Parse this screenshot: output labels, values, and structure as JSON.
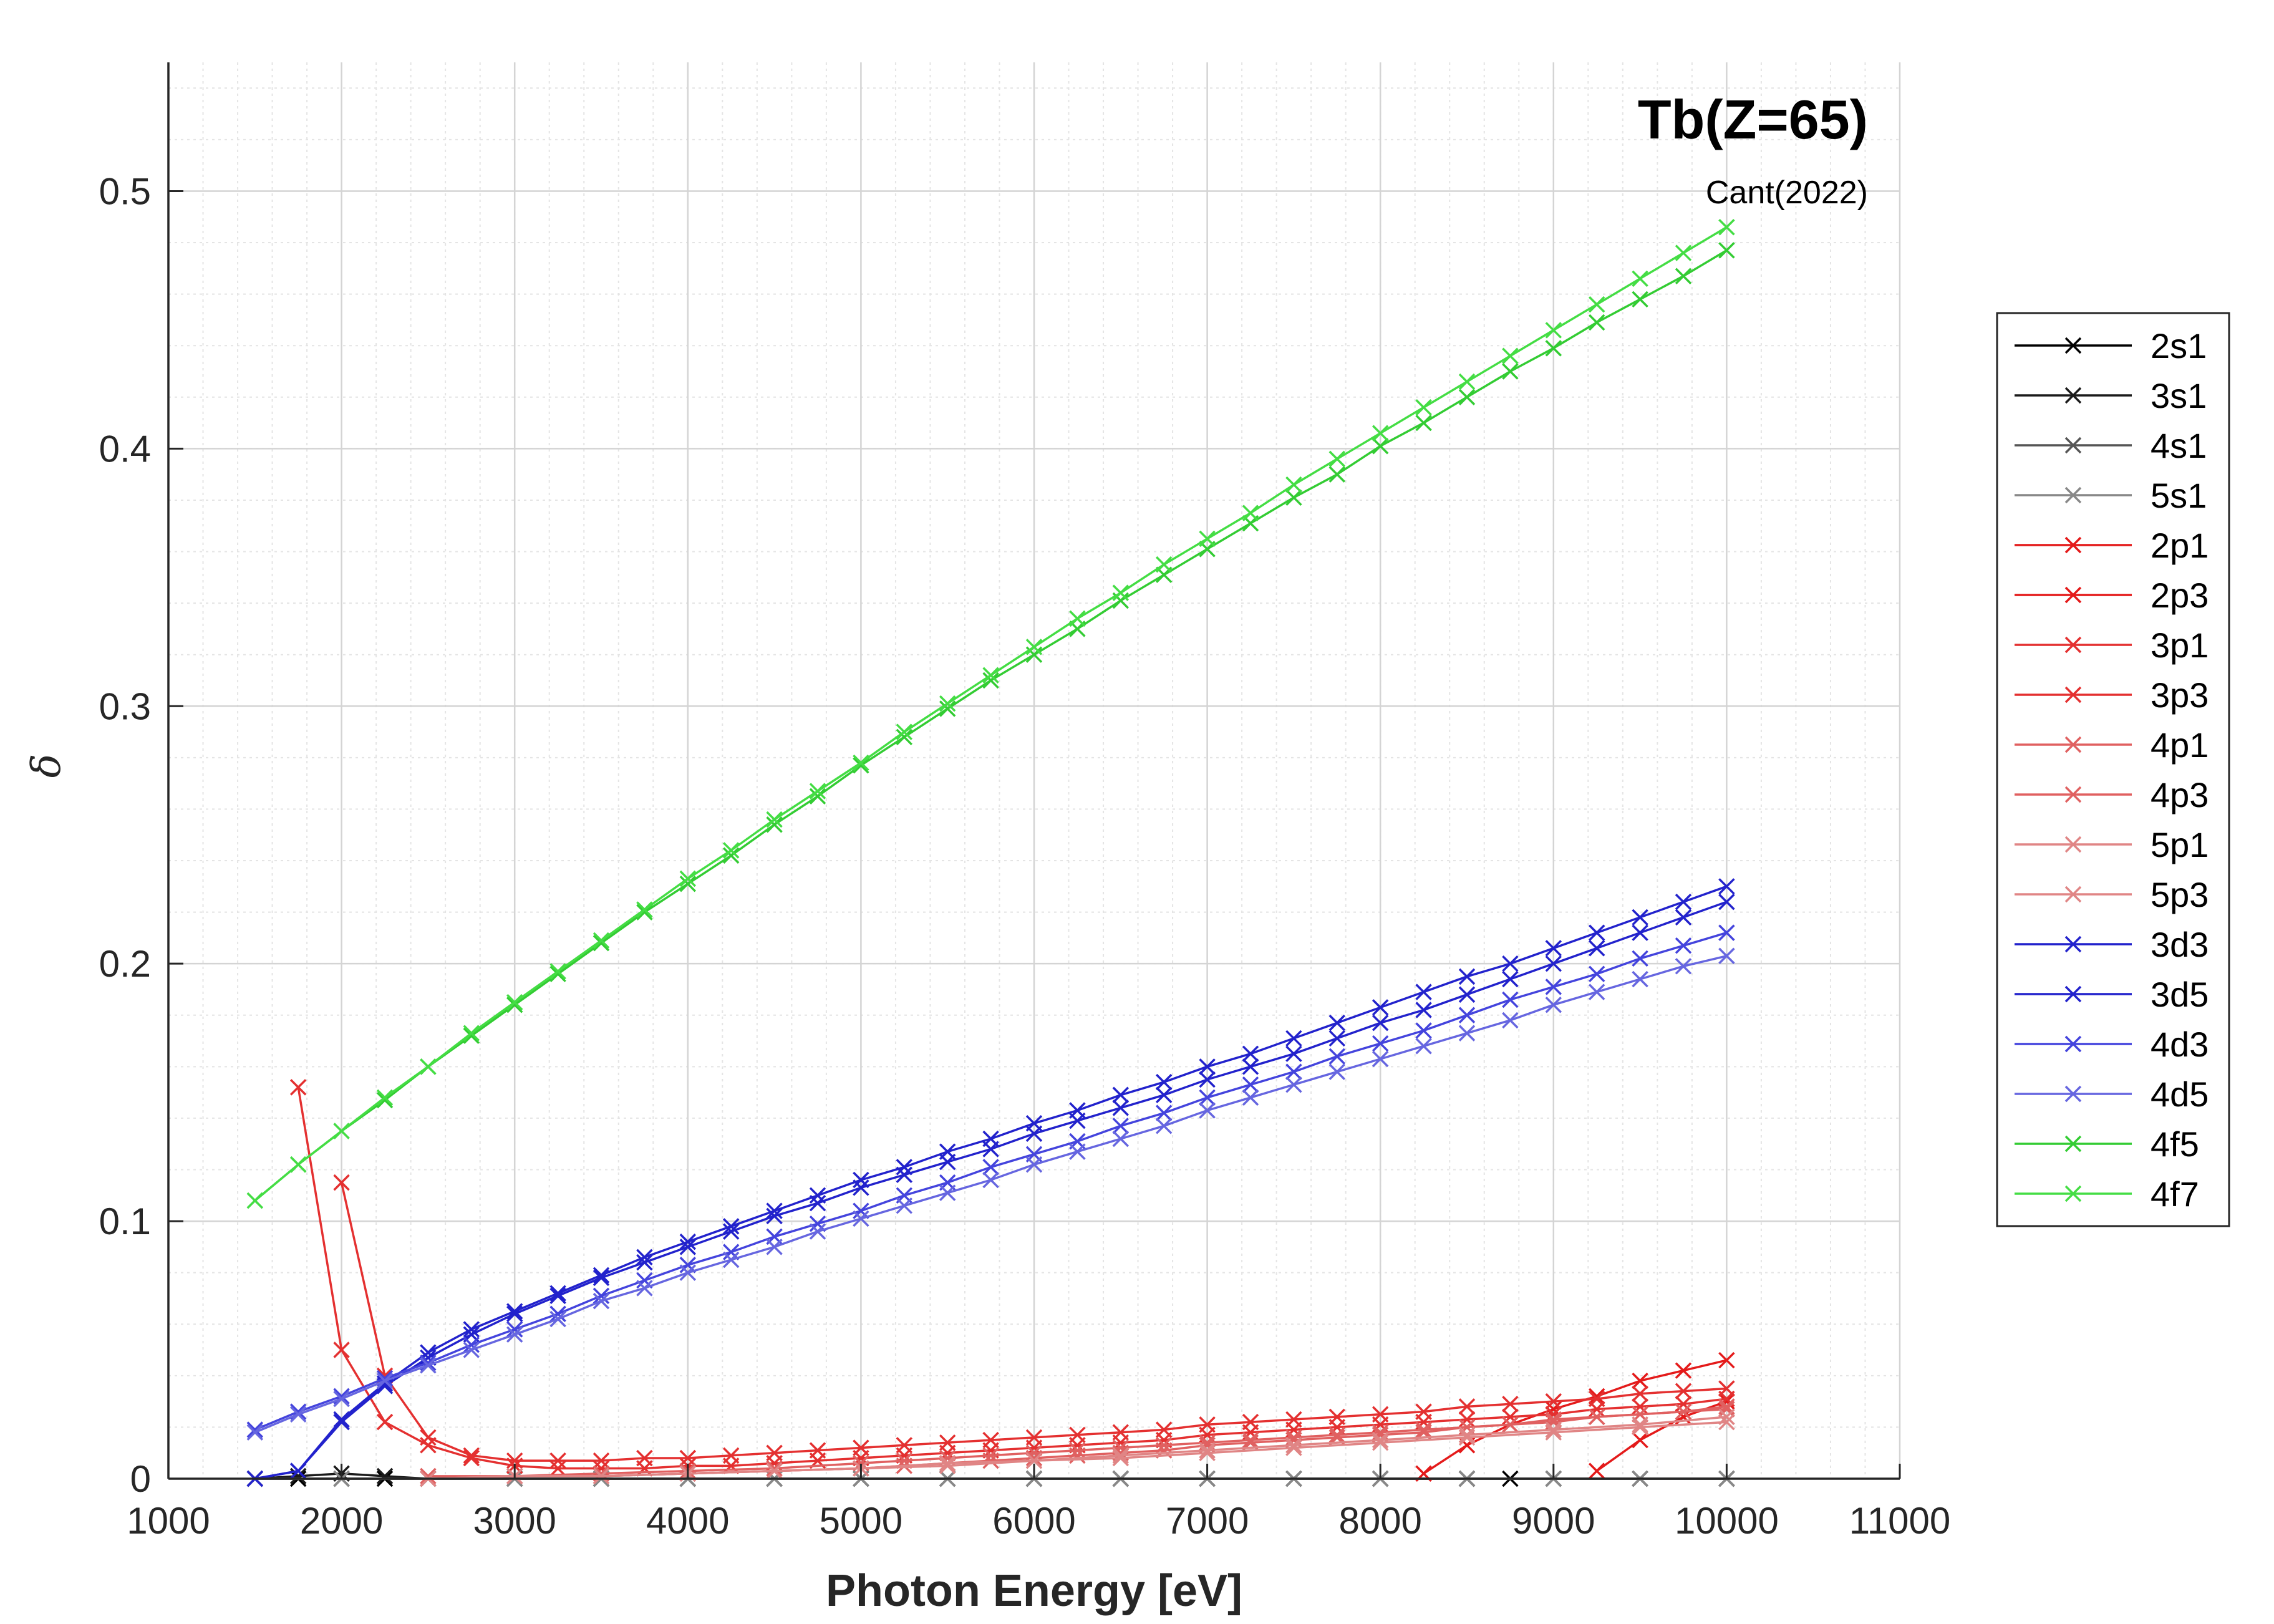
{
  "chart_data": {
    "type": "line",
    "title": "Tb(Z=65)",
    "subtitle": "Cant(2022)",
    "xlabel": "Photon Energy [eV]",
    "ylabel": "δ",
    "xlim": [
      1000,
      11000
    ],
    "ylim": [
      0,
      0.55
    ],
    "xticks": [
      1000,
      2000,
      3000,
      4000,
      5000,
      6000,
      7000,
      8000,
      9000,
      10000,
      11000
    ],
    "xtick_labels": [
      "1000",
      "2000",
      "3000",
      "4000",
      "5000",
      "6000",
      "7000",
      "8000",
      "9000",
      "10000",
      "11000"
    ],
    "yticks": [
      0,
      0.1,
      0.2,
      0.3,
      0.4,
      0.5
    ],
    "ytick_labels": [
      "0",
      "0.1",
      "0.2",
      "0.3",
      "0.4",
      "0.5"
    ],
    "grid": true,
    "minor_grid": true,
    "legend_position": "outside-right",
    "marker": "x",
    "series": [
      {
        "name": "2s1",
        "color": "#000000",
        "x": [
          1500,
          1750,
          2000,
          2250,
          2500,
          3000,
          3500,
          4000,
          4500,
          5000,
          5500,
          6000,
          6500,
          7000,
          7500,
          8000,
          8500,
          8750,
          9000,
          9500,
          10000
        ],
        "y": [
          0,
          0,
          0,
          0,
          0,
          0,
          0,
          0,
          0,
          0,
          0,
          0,
          0,
          0,
          0,
          0,
          0,
          0,
          0,
          0,
          0
        ]
      },
      {
        "name": "3s1",
        "color": "#1a1a1a",
        "x": [
          1500,
          1750,
          2000,
          2250,
          2500,
          3000,
          3500,
          4000,
          4500,
          5000,
          5500,
          6000,
          6500,
          7000,
          7500,
          8000,
          8500,
          9000,
          9500,
          10000
        ],
        "y": [
          0,
          0.001,
          0.002,
          0.001,
          0,
          0,
          0,
          0,
          0,
          0,
          0,
          0,
          0,
          0,
          0,
          0,
          0,
          0,
          0,
          0
        ]
      },
      {
        "name": "4s1",
        "color": "#555555",
        "x": [
          1500,
          2000,
          2500,
          3000,
          3500,
          4000,
          4500,
          5000,
          5500,
          6000,
          6500,
          7000,
          7500,
          8000,
          8500,
          9000,
          9500,
          10000
        ],
        "y": [
          0,
          0,
          0,
          0,
          0,
          0,
          0,
          0,
          0,
          0,
          0,
          0,
          0,
          0,
          0,
          0,
          0,
          0
        ]
      },
      {
        "name": "5s1",
        "color": "#888888",
        "x": [
          1500,
          2000,
          2500,
          3000,
          3500,
          4000,
          4500,
          5000,
          5500,
          6000,
          6500,
          7000,
          7500,
          8000,
          8500,
          9000,
          9500,
          10000
        ],
        "y": [
          0,
          0,
          0,
          0,
          0,
          0,
          0,
          0,
          0,
          0,
          0,
          0,
          0,
          0,
          0,
          0,
          0,
          0
        ]
      },
      {
        "name": "2p1",
        "color": "#e41a1a",
        "x": [
          9250,
          9500,
          9750,
          10000
        ],
        "y": [
          0.003,
          0.015,
          0.024,
          0.03
        ]
      },
      {
        "name": "2p3",
        "color": "#e41a1a",
        "x": [
          8250,
          8500,
          8750,
          9000,
          9250,
          9500,
          9750,
          10000
        ],
        "y": [
          0.002,
          0.013,
          0.021,
          0.027,
          0.032,
          0.038,
          0.042,
          0.046
        ]
      },
      {
        "name": "3p1",
        "color": "#e43030",
        "x": [
          2000,
          2250,
          2500,
          2750,
          3000,
          3250,
          3500,
          3750,
          4000,
          4250,
          4500,
          4750,
          5000,
          5250,
          5500,
          5750,
          6000,
          6250,
          6500,
          6750,
          7000,
          7250,
          7500,
          7750,
          8000,
          8250,
          8500,
          8750,
          9000,
          9250,
          9500,
          9750,
          10000
        ],
        "y": [
          0.115,
          0.04,
          0.016,
          0.009,
          0.007,
          0.007,
          0.007,
          0.008,
          0.008,
          0.009,
          0.01,
          0.011,
          0.012,
          0.013,
          0.014,
          0.015,
          0.016,
          0.017,
          0.018,
          0.019,
          0.021,
          0.022,
          0.023,
          0.024,
          0.025,
          0.026,
          0.028,
          0.029,
          0.03,
          0.031,
          0.033,
          0.034,
          0.035
        ]
      },
      {
        "name": "3p3",
        "color": "#e43030",
        "x": [
          1750,
          2000,
          2250,
          2500,
          2750,
          3000,
          3250,
          3500,
          3750,
          4000,
          4250,
          4500,
          4750,
          5000,
          5250,
          5500,
          5750,
          6000,
          6250,
          6500,
          6750,
          7000,
          7250,
          7500,
          7750,
          8000,
          8250,
          8500,
          8750,
          9000,
          9250,
          9500,
          9750,
          10000
        ],
        "y": [
          0.152,
          0.05,
          0.022,
          0.013,
          0.008,
          0.005,
          0.004,
          0.004,
          0.004,
          0.005,
          0.005,
          0.006,
          0.007,
          0.008,
          0.009,
          0.01,
          0.011,
          0.012,
          0.013,
          0.014,
          0.015,
          0.017,
          0.018,
          0.019,
          0.02,
          0.021,
          0.022,
          0.023,
          0.024,
          0.025,
          0.027,
          0.028,
          0.029,
          0.031
        ]
      },
      {
        "name": "4p1",
        "color": "#e06060",
        "x": [
          3000,
          3500,
          4000,
          4500,
          5000,
          5250,
          5500,
          5750,
          6000,
          6250,
          6500,
          6750,
          7000,
          7250,
          7500,
          7750,
          8000,
          8250,
          8500,
          8750,
          9000,
          9250,
          9500,
          9750,
          10000
        ],
        "y": [
          0.001,
          0.001,
          0.002,
          0.003,
          0.004,
          0.005,
          0.006,
          0.007,
          0.008,
          0.009,
          0.01,
          0.011,
          0.013,
          0.014,
          0.015,
          0.016,
          0.017,
          0.018,
          0.02,
          0.021,
          0.022,
          0.024,
          0.025,
          0.026,
          0.028
        ]
      },
      {
        "name": "4p3",
        "color": "#e06060",
        "x": [
          2500,
          3000,
          3500,
          4000,
          4500,
          5000,
          5250,
          5500,
          5750,
          6000,
          6250,
          6500,
          6750,
          7000,
          7250,
          7500,
          7750,
          8000,
          8250,
          8500,
          8750,
          9000,
          9250,
          9500,
          9750,
          10000
        ],
        "y": [
          0.001,
          0.001,
          0.002,
          0.003,
          0.004,
          0.006,
          0.007,
          0.008,
          0.009,
          0.01,
          0.011,
          0.012,
          0.013,
          0.014,
          0.015,
          0.016,
          0.017,
          0.018,
          0.019,
          0.02,
          0.021,
          0.023,
          0.024,
          0.025,
          0.026,
          0.027
        ]
      },
      {
        "name": "5p1",
        "color": "#e08585",
        "x": [
          2500,
          3000,
          3500,
          4000,
          4500,
          5000,
          5500,
          6000,
          6500,
          7000,
          7500,
          8000,
          8500,
          9000,
          9500,
          10000
        ],
        "y": [
          0,
          0.001,
          0.001,
          0.002,
          0.003,
          0.004,
          0.006,
          0.007,
          0.009,
          0.011,
          0.013,
          0.015,
          0.017,
          0.019,
          0.021,
          0.024
        ]
      },
      {
        "name": "5p3",
        "color": "#e08585",
        "x": [
          2500,
          3000,
          3500,
          4000,
          4500,
          5000,
          5500,
          6000,
          6500,
          7000,
          7500,
          8000,
          8500,
          9000,
          9500,
          10000
        ],
        "y": [
          0,
          0.001,
          0.001,
          0.002,
          0.003,
          0.004,
          0.005,
          0.007,
          0.008,
          0.01,
          0.012,
          0.014,
          0.016,
          0.018,
          0.02,
          0.022
        ]
      },
      {
        "name": "3d3",
        "color": "#2222cc",
        "x": [
          1500,
          1750,
          2000,
          2250,
          2500,
          2750,
          3000,
          3250,
          3500,
          3750,
          4000,
          4250,
          4500,
          4750,
          5000,
          5250,
          5500,
          5750,
          6000,
          6250,
          6500,
          6750,
          7000,
          7250,
          7500,
          7750,
          8000,
          8250,
          8500,
          8750,
          9000,
          9250,
          9500,
          9750,
          10000
        ],
        "y": [
          0,
          0.003,
          0.023,
          0.037,
          0.049,
          0.058,
          0.065,
          0.072,
          0.079,
          0.086,
          0.092,
          0.098,
          0.104,
          0.11,
          0.116,
          0.121,
          0.127,
          0.132,
          0.138,
          0.143,
          0.149,
          0.154,
          0.16,
          0.165,
          0.171,
          0.177,
          0.183,
          0.189,
          0.195,
          0.2,
          0.206,
          0.212,
          0.218,
          0.224,
          0.23
        ]
      },
      {
        "name": "3d5",
        "color": "#2222cc",
        "x": [
          1500,
          1750,
          2000,
          2250,
          2500,
          2750,
          3000,
          3250,
          3500,
          3750,
          4000,
          4250,
          4500,
          4750,
          5000,
          5250,
          5500,
          5750,
          6000,
          6250,
          6500,
          6750,
          7000,
          7250,
          7500,
          7750,
          8000,
          8250,
          8500,
          8750,
          9000,
          9250,
          9500,
          9750,
          10000
        ],
        "y": [
          0,
          0.003,
          0.022,
          0.036,
          0.047,
          0.056,
          0.064,
          0.071,
          0.078,
          0.084,
          0.09,
          0.096,
          0.102,
          0.107,
          0.113,
          0.118,
          0.123,
          0.128,
          0.134,
          0.139,
          0.144,
          0.149,
          0.155,
          0.16,
          0.165,
          0.171,
          0.177,
          0.182,
          0.188,
          0.194,
          0.2,
          0.206,
          0.212,
          0.218,
          0.224
        ]
      },
      {
        "name": "4d3",
        "color": "#4444dd",
        "x": [
          1500,
          1750,
          2000,
          2250,
          2500,
          2750,
          3000,
          3250,
          3500,
          3750,
          4000,
          4250,
          4500,
          4750,
          5000,
          5250,
          5500,
          5750,
          6000,
          6250,
          6500,
          6750,
          7000,
          7250,
          7500,
          7750,
          8000,
          8250,
          8500,
          8750,
          9000,
          9250,
          9500,
          9750,
          10000
        ],
        "y": [
          0.019,
          0.026,
          0.032,
          0.039,
          0.045,
          0.052,
          0.058,
          0.064,
          0.071,
          0.077,
          0.083,
          0.088,
          0.094,
          0.099,
          0.104,
          0.11,
          0.115,
          0.121,
          0.126,
          0.131,
          0.137,
          0.142,
          0.148,
          0.153,
          0.158,
          0.164,
          0.169,
          0.174,
          0.18,
          0.186,
          0.191,
          0.196,
          0.202,
          0.207,
          0.212
        ]
      },
      {
        "name": "4d5",
        "color": "#6666e0",
        "x": [
          1500,
          1750,
          2000,
          2250,
          2500,
          2750,
          3000,
          3250,
          3500,
          3750,
          4000,
          4250,
          4500,
          4750,
          5000,
          5250,
          5500,
          5750,
          6000,
          6250,
          6500,
          6750,
          7000,
          7250,
          7500,
          7750,
          8000,
          8250,
          8500,
          8750,
          9000,
          9250,
          9500,
          9750,
          10000
        ],
        "y": [
          0.018,
          0.025,
          0.031,
          0.038,
          0.044,
          0.05,
          0.056,
          0.062,
          0.069,
          0.074,
          0.08,
          0.085,
          0.09,
          0.096,
          0.101,
          0.106,
          0.111,
          0.116,
          0.122,
          0.127,
          0.132,
          0.137,
          0.143,
          0.148,
          0.153,
          0.158,
          0.163,
          0.168,
          0.173,
          0.178,
          0.184,
          0.189,
          0.194,
          0.199,
          0.203
        ]
      },
      {
        "name": "4f5",
        "color": "#33cc33",
        "x": [
          1500,
          1750,
          2000,
          2250,
          2500,
          2750,
          3000,
          3250,
          3500,
          3750,
          4000,
          4250,
          4500,
          4750,
          5000,
          5250,
          5500,
          5750,
          6000,
          6250,
          6500,
          6750,
          7000,
          7250,
          7500,
          7750,
          8000,
          8250,
          8500,
          8750,
          9000,
          9250,
          9500,
          9750,
          10000
        ],
        "y": [
          0.108,
          0.122,
          0.135,
          0.147,
          0.16,
          0.172,
          0.184,
          0.196,
          0.208,
          0.22,
          0.231,
          0.242,
          0.254,
          0.265,
          0.277,
          0.288,
          0.299,
          0.31,
          0.32,
          0.33,
          0.341,
          0.351,
          0.361,
          0.371,
          0.381,
          0.39,
          0.401,
          0.41,
          0.42,
          0.43,
          0.439,
          0.449,
          0.458,
          0.467,
          0.477
        ]
      },
      {
        "name": "4f7",
        "color": "#44dd44",
        "x": [
          1500,
          1750,
          2000,
          2250,
          2500,
          2750,
          3000,
          3250,
          3500,
          3750,
          4000,
          4250,
          4500,
          4750,
          5000,
          5250,
          5500,
          5750,
          6000,
          6250,
          6500,
          6750,
          7000,
          7250,
          7500,
          7750,
          8000,
          8250,
          8500,
          8750,
          9000,
          9250,
          9500,
          9750,
          10000
        ],
        "y": [
          0.108,
          0.122,
          0.135,
          0.148,
          0.16,
          0.173,
          0.185,
          0.197,
          0.209,
          0.221,
          0.233,
          0.244,
          0.256,
          0.267,
          0.278,
          0.29,
          0.301,
          0.312,
          0.323,
          0.334,
          0.344,
          0.355,
          0.365,
          0.375,
          0.386,
          0.396,
          0.406,
          0.416,
          0.426,
          0.436,
          0.446,
          0.456,
          0.466,
          0.476,
          0.486
        ]
      }
    ]
  }
}
